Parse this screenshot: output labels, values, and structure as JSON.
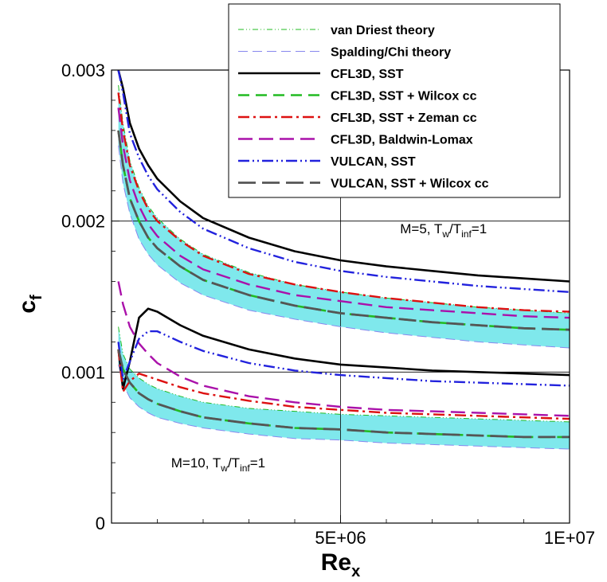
{
  "chart_data": {
    "type": "line",
    "xlabel": "Re",
    "xlabel_sub": "x",
    "ylabel": "c",
    "ylabel_sub": "f",
    "xlim": [
      0,
      10000000
    ],
    "ylim": [
      0,
      0.003
    ],
    "x_ticks": [
      {
        "value": 5000000,
        "label": "5E+06"
      },
      {
        "value": 10000000,
        "label": "1E+07"
      }
    ],
    "y_ticks": [
      {
        "value": 0,
        "label": "0"
      },
      {
        "value": 0.001,
        "label": "0.001"
      },
      {
        "value": 0.002,
        "label": "0.002"
      },
      {
        "value": 0.003,
        "label": "0.003"
      }
    ],
    "grid": true,
    "legend_position": "top-right",
    "band_color": "#7fe8ec",
    "annotations": [
      {
        "main": "M=5, T",
        "sub1": "w",
        "mid": "/T",
        "sub2": "inf",
        "tail": "=1",
        "x": 6300000,
        "y": 0.00192
      },
      {
        "main": "M=10, T",
        "sub1": "w",
        "mid": "/T",
        "sub2": "inf",
        "tail": "=1",
        "x": 1300000,
        "y": 0.00037
      }
    ],
    "x": [
      150000,
      250000,
      400000,
      600000,
      800000,
      1000000,
      1500000,
      2000000,
      3000000,
      4000000,
      5000000,
      6000000,
      7000000,
      8000000,
      9000000,
      10000000
    ],
    "series": [
      {
        "name": "van Driest theory",
        "color": "#22bb22",
        "dash": "7,3,1,3,1,3",
        "width": 1,
        "curves": [
          {
            "case": "M=5",
            "values": [
              0.0029,
              0.00265,
              0.0024,
              0.00222,
              0.0021,
              0.00202,
              0.00188,
              0.00178,
              0.00166,
              0.00158,
              0.00153,
              0.00149,
              0.00146,
              0.00143,
              0.00141,
              0.00139
            ]
          },
          {
            "case": "M=10",
            "values": [
              0.0013,
              0.00112,
              0.00102,
              0.00096,
              0.00092,
              0.00089,
              0.00084,
              0.0008,
              0.00076,
              0.00074,
              0.00072,
              0.00071,
              0.0007,
              0.00069,
              0.00068,
              0.00067
            ]
          }
        ]
      },
      {
        "name": "Spalding/Chi theory",
        "color": "#8888ee",
        "dash": "12,6",
        "width": 1,
        "curves": [
          {
            "case": "M=5",
            "values": [
              0.0025,
              0.00225,
              0.00205,
              0.00188,
              0.00178,
              0.00171,
              0.00159,
              0.00151,
              0.00141,
              0.00135,
              0.0013,
              0.00126,
              0.00123,
              0.0012,
              0.00118,
              0.00116
            ]
          },
          {
            "case": "M=10",
            "values": [
              0.00105,
              0.00092,
              0.00083,
              0.00077,
              0.00073,
              0.0007,
              0.00066,
              0.00063,
              0.00059,
              0.00056,
              0.00055,
              0.00053,
              0.00052,
              0.00051,
              0.0005,
              0.00049
            ]
          }
        ]
      },
      {
        "name": "CFL3D, SST",
        "color": "#000000",
        "dash": "",
        "width": 2.6,
        "curves": [
          {
            "case": "M=5",
            "values": [
              0.003,
              0.00288,
              0.00265,
              0.00248,
              0.00237,
              0.00228,
              0.00213,
              0.00202,
              0.00189,
              0.0018,
              0.00174,
              0.0017,
              0.00167,
              0.00164,
              0.00162,
              0.0016
            ]
          },
          {
            "case": "M=10",
            "values": [
              0.00115,
              0.00089,
              0.00107,
              0.00136,
              0.00142,
              0.0014,
              0.00131,
              0.00124,
              0.00115,
              0.00109,
              0.00105,
              0.00103,
              0.00101,
              0.001,
              0.00099,
              0.00098
            ]
          }
        ]
      },
      {
        "name": "CFL3D, SST + Wilcox cc",
        "color": "#22bb22",
        "dash": "14,8",
        "width": 2.6,
        "curves": [
          {
            "case": "M=5",
            "values": [
              0.0026,
              0.00237,
              0.00215,
              0.002,
              0.00189,
              0.00182,
              0.0017,
              0.00161,
              0.00151,
              0.00144,
              0.00139,
              0.00136,
              0.00133,
              0.00131,
              0.00129,
              0.00128
            ]
          },
          {
            "case": "M=10",
            "values": [
              0.00115,
              0.00102,
              0.00093,
              0.00086,
              0.00082,
              0.00079,
              0.00074,
              0.0007,
              0.00066,
              0.00063,
              0.00062,
              0.0006,
              0.00059,
              0.00058,
              0.00057,
              0.00057
            ]
          }
        ]
      },
      {
        "name": "CFL3D, SST + Zeman cc",
        "color": "#dd1111",
        "dash": "14,5,3,5",
        "width": 2.4,
        "curves": [
          {
            "case": "M=5",
            "values": [
              0.00285,
              0.0026,
              0.00237,
              0.0022,
              0.00208,
              0.002,
              0.00187,
              0.00177,
              0.00165,
              0.00158,
              0.00153,
              0.00149,
              0.00146,
              0.00143,
              0.00141,
              0.0014
            ]
          },
          {
            "case": "M=10",
            "values": [
              0.00115,
              0.00087,
              0.00094,
              0.00099,
              0.00097,
              0.00095,
              0.0009,
              0.00086,
              0.00081,
              0.00077,
              0.00075,
              0.00073,
              0.00072,
              0.00071,
              0.0007,
              0.00069
            ]
          }
        ]
      },
      {
        "name": "CFL3D, Baldwin-Lomax",
        "color": "#aa11aa",
        "dash": "18,8",
        "width": 2.4,
        "curves": [
          {
            "case": "M=5",
            "values": [
              0.00275,
              0.0025,
              0.00227,
              0.0021,
              0.00198,
              0.0019,
              0.00177,
              0.00168,
              0.00158,
              0.00151,
              0.00147,
              0.00143,
              0.00141,
              0.00139,
              0.00137,
              0.00136
            ]
          },
          {
            "case": "M=10",
            "values": [
              0.0016,
              0.00145,
              0.0013,
              0.00119,
              0.00112,
              0.00106,
              0.00097,
              0.00091,
              0.00084,
              0.0008,
              0.00077,
              0.00075,
              0.00074,
              0.00073,
              0.00072,
              0.00071
            ]
          }
        ]
      },
      {
        "name": "VULCAN, SST",
        "color": "#2222dd",
        "dash": "14,4,2,4,2,4",
        "width": 2.4,
        "curves": [
          {
            "case": "M=5",
            "values": [
              0.003,
              0.00285,
              0.00258,
              0.00242,
              0.0023,
              0.00221,
              0.00206,
              0.00195,
              0.00182,
              0.00173,
              0.00167,
              0.00163,
              0.0016,
              0.00157,
              0.00155,
              0.00153
            ]
          },
          {
            "case": "M=10",
            "values": [
              0.0012,
              0.00095,
              0.00107,
              0.00122,
              0.00127,
              0.00127,
              0.0012,
              0.00114,
              0.00106,
              0.00101,
              0.00098,
              0.00096,
              0.00094,
              0.00093,
              0.00092,
              0.00091
            ]
          }
        ]
      },
      {
        "name": "VULCAN, SST + Wilcox cc",
        "color": "#555555",
        "dash": "22,8",
        "width": 2.8,
        "curves": [
          {
            "case": "M=5",
            "values": [
              0.0026,
              0.00237,
              0.00215,
              0.002,
              0.00189,
              0.00182,
              0.0017,
              0.00161,
              0.00151,
              0.00144,
              0.00139,
              0.00136,
              0.00133,
              0.00131,
              0.00129,
              0.00128
            ]
          },
          {
            "case": "M=10",
            "values": [
              0.00115,
              0.00102,
              0.00093,
              0.00086,
              0.00082,
              0.00079,
              0.00074,
              0.0007,
              0.00066,
              0.00063,
              0.00062,
              0.0006,
              0.00059,
              0.00058,
              0.00057,
              0.00057
            ]
          }
        ]
      }
    ]
  }
}
